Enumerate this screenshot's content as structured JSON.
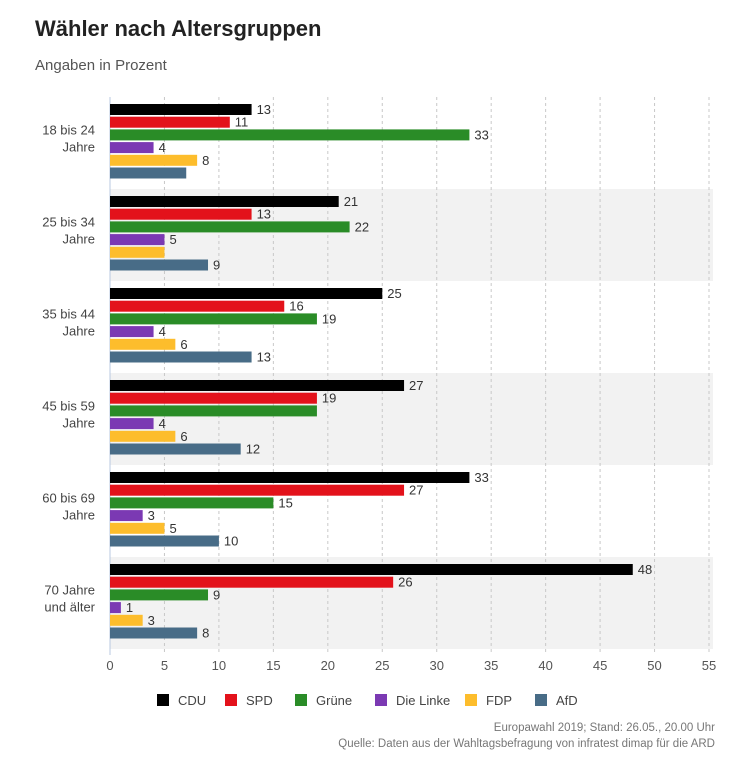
{
  "chart_data": {
    "type": "bar",
    "orientation": "horizontal",
    "title": "Wähler nach Altersgruppen",
    "subtitle": "Angaben in Prozent",
    "categories": [
      "18 bis 24|Jahre",
      "25 bis 34|Jahre",
      "35 bis 44|Jahre",
      "45 bis 59|Jahre",
      "60 bis 69|Jahre",
      "70 Jahre|und älter"
    ],
    "series": [
      {
        "name": "CDU",
        "color": "#000000",
        "values": [
          13,
          21,
          25,
          27,
          33,
          48
        ]
      },
      {
        "name": "SPD",
        "color": "#e3121b",
        "values": [
          11,
          13,
          16,
          19,
          27,
          26
        ]
      },
      {
        "name": "Grüne",
        "color": "#2a8c27",
        "values": [
          33,
          22,
          19,
          19,
          15,
          9
        ]
      },
      {
        "name": "Die Linke",
        "color": "#7b39b3",
        "values": [
          4,
          5,
          4,
          4,
          3,
          1
        ]
      },
      {
        "name": "FDP",
        "color": "#fdbd2c",
        "values": [
          8,
          5,
          6,
          6,
          5,
          3
        ]
      },
      {
        "name": "AfD",
        "color": "#486c87",
        "values": [
          7,
          9,
          13,
          12,
          10,
          8
        ]
      }
    ],
    "unlabeled_bars": [
      [
        5,
        0
      ],
      [
        4,
        1
      ],
      [
        2,
        3
      ]
    ],
    "xlim": [
      0,
      55
    ],
    "xticks": [
      0,
      5,
      10,
      15,
      20,
      25,
      30,
      35,
      40,
      45,
      50,
      55
    ],
    "grid": true,
    "legend": "bottom"
  },
  "footer": {
    "line1": "Europawahl 2019; Stand: 26.05., 20.00 Uhr",
    "line2": "Quelle: Daten aus der Wahltagsbefragung von infratest dimap für die ARD"
  }
}
